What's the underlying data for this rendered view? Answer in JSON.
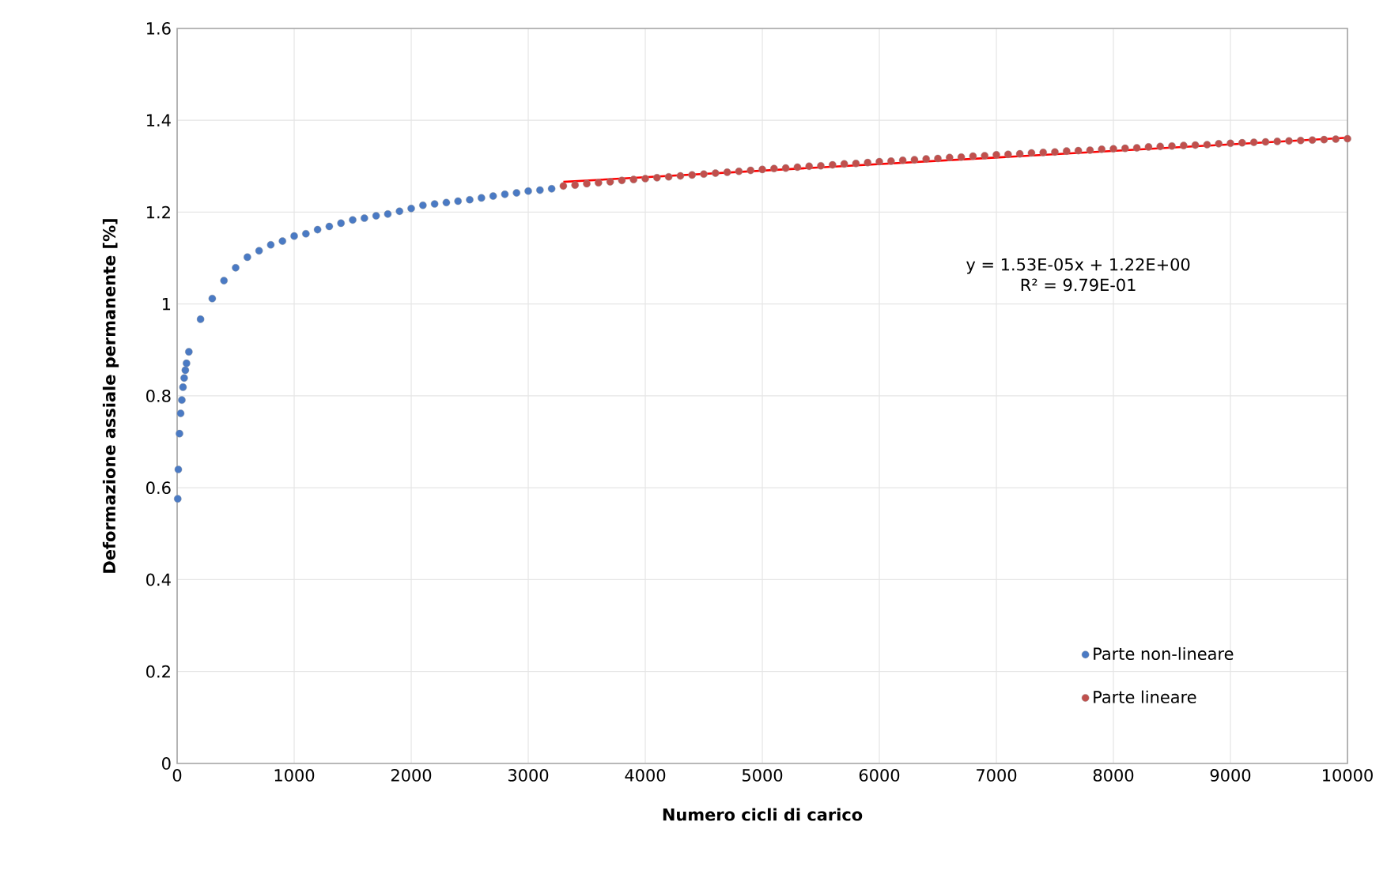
{
  "chart_data": {
    "type": "scatter",
    "xlabel": "Numero cicli di carico",
    "ylabel": "Deformazione assiale permanente [%]",
    "xlim": [
      0,
      10000
    ],
    "xticks": [
      0,
      1000,
      2000,
      3000,
      4000,
      5000,
      6000,
      7000,
      8000,
      9000,
      10000
    ],
    "ylim": [
      0,
      1.6
    ],
    "yticks": [
      0,
      0.2,
      0.4,
      0.6,
      0.8,
      1,
      1.2,
      1.4,
      1.6
    ],
    "grid": true,
    "legend": "bottom right",
    "annotations": [
      "y = 1.53E-05x + 1.22E+00",
      "R² = 9.79E-01"
    ],
    "series": [
      {
        "name": "Parte non-lineare",
        "marker": "circle",
        "color": "#4a7ac4",
        "x": [
          5,
          10,
          20,
          30,
          40,
          50,
          60,
          70,
          80,
          100,
          200,
          300,
          400,
          500,
          600,
          700,
          800,
          900,
          1000,
          1100,
          1200,
          1300,
          1400,
          1500,
          1600,
          1700,
          1800,
          1900,
          2000,
          2100,
          2200,
          2300,
          2400,
          2500,
          2600,
          2700,
          2800,
          2900,
          3000,
          3100,
          3200
        ],
        "values": [
          0.576,
          0.64,
          0.718,
          0.762,
          0.791,
          0.819,
          0.839,
          0.856,
          0.871,
          0.896,
          0.967,
          1.012,
          1.051,
          1.079,
          1.102,
          1.116,
          1.129,
          1.137,
          1.148,
          1.153,
          1.162,
          1.169,
          1.176,
          1.183,
          1.187,
          1.192,
          1.196,
          1.202,
          1.208,
          1.215,
          1.218,
          1.221,
          1.224,
          1.227,
          1.231,
          1.235,
          1.239,
          1.242,
          1.246,
          1.248,
          1.251
        ]
      },
      {
        "name": "Parte lineare",
        "marker": "circle",
        "color": "#c0504d",
        "x": [
          3300,
          3400,
          3500,
          3600,
          3700,
          3800,
          3900,
          4000,
          4100,
          4200,
          4300,
          4400,
          4500,
          4600,
          4700,
          4800,
          4900,
          5000,
          5100,
          5200,
          5300,
          5400,
          5500,
          5600,
          5700,
          5800,
          5900,
          6000,
          6100,
          6200,
          6300,
          6400,
          6500,
          6600,
          6700,
          6800,
          6900,
          7000,
          7100,
          7200,
          7300,
          7400,
          7500,
          7600,
          7700,
          7800,
          7900,
          8000,
          8100,
          8200,
          8300,
          8400,
          8500,
          8600,
          8700,
          8800,
          8900,
          9000,
          9100,
          9200,
          9300,
          9400,
          9500,
          9600,
          9700,
          9800,
          9900,
          10000
        ],
        "values": [
          1.257,
          1.259,
          1.262,
          1.264,
          1.266,
          1.269,
          1.271,
          1.273,
          1.275,
          1.277,
          1.279,
          1.281,
          1.283,
          1.285,
          1.287,
          1.289,
          1.291,
          1.293,
          1.295,
          1.296,
          1.298,
          1.3,
          1.301,
          1.303,
          1.305,
          1.306,
          1.308,
          1.31,
          1.311,
          1.313,
          1.314,
          1.316,
          1.317,
          1.319,
          1.32,
          1.322,
          1.323,
          1.325,
          1.326,
          1.327,
          1.329,
          1.33,
          1.331,
          1.333,
          1.334,
          1.335,
          1.337,
          1.338,
          1.339,
          1.34,
          1.342,
          1.343,
          1.344,
          1.345,
          1.346,
          1.347,
          1.349,
          1.35,
          1.351,
          1.352,
          1.353,
          1.354,
          1.355,
          1.356,
          1.357,
          1.358,
          1.359,
          1.36
        ]
      },
      {
        "type": "line",
        "marker": "none",
        "color": "#ff0000",
        "x": [
          3300,
          10000
        ],
        "values": [
          1.266,
          1.362
        ]
      }
    ]
  }
}
